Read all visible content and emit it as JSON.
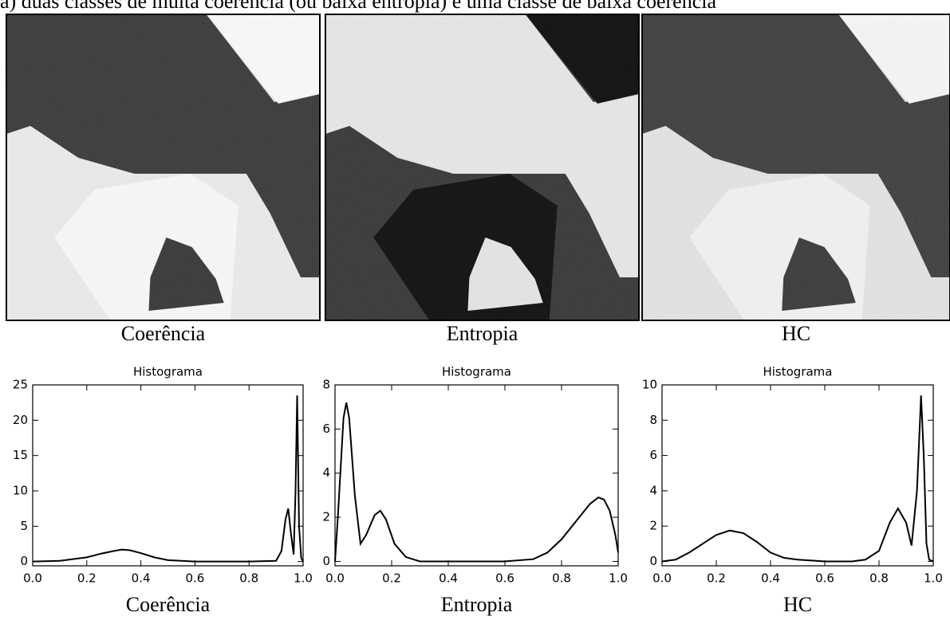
{
  "caption": "a) duas classes de muita coerência (ou baixa entropia) e uma classe de baixa coerência",
  "images": [
    {
      "label": "Coerência"
    },
    {
      "label": "Entropia"
    },
    {
      "label": "HC"
    }
  ],
  "chart_data": [
    {
      "type": "line",
      "title": "Histograma",
      "x_label": "Coerência",
      "x": [
        0,
        0.1,
        0.2,
        0.25,
        0.3,
        0.33,
        0.36,
        0.4,
        0.45,
        0.5,
        0.6,
        0.7,
        0.8,
        0.9,
        0.92,
        0.935,
        0.945,
        0.955,
        0.965,
        0.972,
        0.978,
        0.985,
        0.993,
        1.0
      ],
      "series": [
        {
          "color": "#000000",
          "values": [
            0,
            0.1,
            0.6,
            1.1,
            1.5,
            1.7,
            1.6,
            1.2,
            0.6,
            0.2,
            0,
            0,
            0,
            0.1,
            1.5,
            6,
            7.5,
            4,
            1,
            10,
            23.5,
            5,
            0.5,
            0
          ]
        }
      ],
      "xlim": [
        0,
        1
      ],
      "ylim": [
        -0.6,
        25
      ],
      "xticks": [
        {
          "value": 0,
          "label": "0.0"
        },
        0.2,
        0.4,
        0.6,
        0.8,
        {
          "value": 1,
          "label": "1.0"
        }
      ],
      "yticks": [
        0,
        5,
        10,
        15,
        20,
        25
      ]
    },
    {
      "type": "line",
      "title": "Histograma",
      "x_label": "Entropia",
      "x": [
        0,
        0.01,
        0.03,
        0.04,
        0.05,
        0.07,
        0.09,
        0.11,
        0.14,
        0.16,
        0.18,
        0.21,
        0.25,
        0.3,
        0.4,
        0.6,
        0.7,
        0.75,
        0.8,
        0.85,
        0.9,
        0.93,
        0.95,
        0.97,
        0.99,
        1.0
      ],
      "series": [
        {
          "color": "#000000",
          "values": [
            0,
            2,
            6.5,
            7.2,
            6.5,
            3,
            0.8,
            1.2,
            2.1,
            2.3,
            1.9,
            0.8,
            0.2,
            0,
            0,
            0,
            0.1,
            0.4,
            1,
            1.8,
            2.6,
            2.9,
            2.8,
            2.3,
            1.2,
            0.4
          ]
        }
      ],
      "xlim": [
        0,
        1
      ],
      "ylim": [
        -0.2,
        8
      ],
      "xticks": [
        {
          "value": 0,
          "label": "0.0"
        },
        0.2,
        0.4,
        0.6,
        0.8,
        {
          "value": 1,
          "label": "1.0"
        }
      ],
      "yticks": [
        0,
        2,
        4,
        6,
        8
      ]
    },
    {
      "type": "line",
      "title": "Histograma",
      "x_label": "HC",
      "x": [
        0,
        0.05,
        0.1,
        0.15,
        0.2,
        0.25,
        0.3,
        0.35,
        0.4,
        0.45,
        0.5,
        0.6,
        0.7,
        0.75,
        0.8,
        0.84,
        0.87,
        0.9,
        0.92,
        0.94,
        0.955,
        0.965,
        0.975,
        0.985,
        1.0
      ],
      "series": [
        {
          "color": "#000000",
          "values": [
            0,
            0.1,
            0.5,
            1,
            1.5,
            1.75,
            1.6,
            1.1,
            0.5,
            0.2,
            0.1,
            0,
            0,
            0.1,
            0.6,
            2.2,
            3,
            2.2,
            0.9,
            4,
            9.4,
            6,
            1,
            0.1,
            0
          ]
        }
      ],
      "xlim": [
        0,
        1
      ],
      "ylim": [
        -0.25,
        10
      ],
      "xticks": [
        {
          "value": 0,
          "label": "0.0"
        },
        0.2,
        0.4,
        0.6,
        0.8,
        {
          "value": 1,
          "label": "1.0"
        }
      ],
      "yticks": [
        0,
        2,
        4,
        6,
        8,
        10
      ]
    }
  ]
}
